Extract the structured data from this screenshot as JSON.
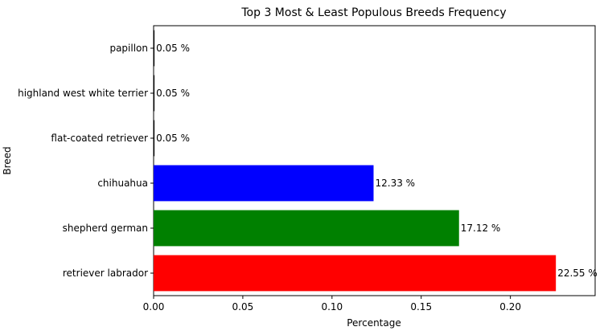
{
  "chart_data": {
    "type": "bar",
    "orientation": "horizontal",
    "title": "Top 3 Most & Least Populous Breeds Frequency",
    "xlabel": "Percentage",
    "ylabel": "Breed",
    "xlim": [
      0,
      0.2475
    ],
    "xticks": [
      "0.00",
      "0.05",
      "0.10",
      "0.15",
      "0.20"
    ],
    "categories": [
      "retriever labrador",
      "shepherd german",
      "chihuahua",
      "flat-coated retriever",
      "highland west white terrier",
      "papillon"
    ],
    "values": [
      0.2255,
      0.1712,
      0.1233,
      0.0005,
      0.0005,
      0.0005
    ],
    "value_labels": [
      "22.55 %",
      "17.12 %",
      "12.33 %",
      "0.05 %",
      "0.05 %",
      "0.05 %"
    ],
    "colors": [
      "#ff0000",
      "#008000",
      "#0000ff",
      "#000000",
      "#000000",
      "#000000"
    ],
    "grid": false
  }
}
